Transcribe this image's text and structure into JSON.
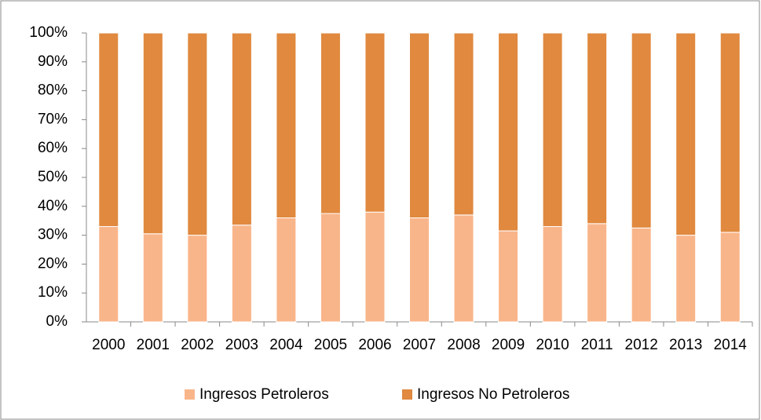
{
  "chart_data": {
    "type": "stacked_bar",
    "categories": [
      "2000",
      "2001",
      "2002",
      "2003",
      "2004",
      "2005",
      "2006",
      "2007",
      "2008",
      "2009",
      "2010",
      "2011",
      "2012",
      "2013",
      "2014"
    ],
    "series": [
      {
        "name": "Ingresos Petroleros",
        "color": "#f9b58a",
        "values": [
          33,
          30.5,
          30,
          33.5,
          36,
          37.5,
          38,
          36,
          37,
          31.5,
          33,
          34,
          32.5,
          30,
          31
        ]
      },
      {
        "name": "Ingresos No Petroleros",
        "color": "#e0893f",
        "values": [
          67,
          69.5,
          70,
          66.5,
          64,
          62.5,
          62,
          64,
          63,
          68.5,
          67,
          66,
          67.5,
          70,
          69
        ]
      }
    ],
    "ylim": [
      0,
      100
    ],
    "yticks": [
      {
        "value": 0,
        "label": "0%"
      },
      {
        "value": 10,
        "label": "10%"
      },
      {
        "value": 20,
        "label": "20%"
      },
      {
        "value": 30,
        "label": "30%"
      },
      {
        "value": 40,
        "label": "40%"
      },
      {
        "value": 50,
        "label": "50%"
      },
      {
        "value": 60,
        "label": "60%"
      },
      {
        "value": 70,
        "label": "70%"
      },
      {
        "value": 80,
        "label": "80%"
      },
      {
        "value": 90,
        "label": "90%"
      },
      {
        "value": 100,
        "label": "100%"
      }
    ],
    "legend": "bottom"
  }
}
